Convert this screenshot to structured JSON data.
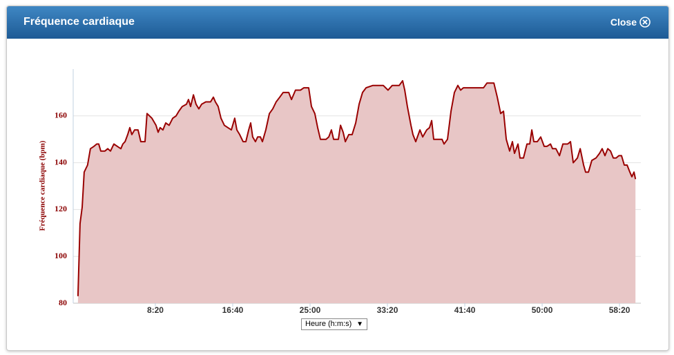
{
  "dialog": {
    "title": "Fréquence cardiaque",
    "close": "Close"
  },
  "chart_data": {
    "type": "area",
    "y_label": "Fréquence cardiaque (bpm)",
    "x_label": "Heure (h:m:s)",
    "x": [
      0,
      13,
      27,
      40,
      62,
      80,
      103,
      121,
      134,
      147,
      174,
      192,
      210,
      232,
      254,
      277,
      290,
      304,
      321,
      335,
      348,
      366,
      388,
      406,
      433,
      446,
      478,
      504,
      518,
      531,
      549,
      567,
      589,
      612,
      634,
      652,
      674,
      701,
      714,
      728,
      746,
      763,
      781,
      799,
      826,
      857,
      875,
      888,
      906,
      924,
      946,
      969,
      991,
      1013,
      1027,
      1045,
      1067,
      1085,
      1103,
      1116,
      1129,
      1147,
      1161,
      1179,
      1192,
      1214,
      1237,
      1259,
      1281,
      1304,
      1326,
      1362,
      1380,
      1406,
      1438,
      1460,
      1491,
      1509,
      1531,
      1549,
      1567,
      1603,
      1621,
      1638,
      1652,
      1683,
      1697,
      1714,
      1728,
      1750,
      1772,
      1795,
      1817,
      1839,
      1862,
      1906,
      1973,
      2004,
      2031,
      2076,
      2098,
      2112,
      2129,
      2152,
      2165,
      2183,
      2210,
      2228,
      2254,
      2272,
      2286,
      2299,
      2353,
      2366,
      2388,
      2411,
      2433,
      2455,
      2473,
      2491,
      2621,
      2643,
      2688,
      2710,
      2732,
      2750,
      2768,
      2790,
      2808,
      2821,
      2844,
      2857,
      2879,
      2902,
      2920,
      2933,
      2946,
      2969,
      2991,
      3013,
      3031,
      3054,
      3067,
      3089,
      3112,
      3134,
      3165,
      3183,
      3201,
      3228,
      3246,
      3268,
      3281,
      3299,
      3321,
      3348,
      3371,
      3388,
      3406,
      3424,
      3442,
      3460,
      3478,
      3496,
      3513,
      3531,
      3549,
      3567,
      3580,
      3594,
      3603
    ],
    "series": [
      {
        "color": "#990000",
        "fill": "#e8c6c6",
        "values": [
          83,
          114,
          121,
          136,
          139,
          146,
          147,
          148,
          148,
          145,
          145,
          146,
          145,
          148,
          147,
          146,
          148,
          149,
          152,
          155,
          152,
          154,
          154,
          149,
          149,
          161,
          159,
          156,
          153,
          155,
          154,
          157,
          156,
          159,
          160,
          162,
          164,
          165,
          167,
          164,
          169,
          165,
          163,
          165,
          166,
          166,
          168,
          166,
          164,
          159,
          156,
          155,
          154,
          159,
          154,
          152,
          149,
          149,
          154,
          157,
          151,
          149,
          151,
          151,
          149,
          154,
          161,
          163,
          166,
          168,
          170,
          170,
          167,
          171,
          171,
          172,
          172,
          164,
          161,
          155,
          150,
          150,
          151,
          154,
          150,
          150,
          156,
          153,
          149,
          152,
          152,
          157,
          165,
          170,
          172,
          173,
          173,
          171,
          173,
          173,
          175,
          171,
          164,
          156,
          152,
          149,
          154,
          151,
          154,
          155,
          158,
          150,
          150,
          148,
          150,
          162,
          170,
          173,
          171,
          172,
          172,
          174,
          174,
          168,
          161,
          162,
          150,
          145,
          149,
          144,
          148,
          142,
          142,
          148,
          148,
          154,
          149,
          149,
          151,
          147,
          147,
          148,
          146,
          146,
          143,
          148,
          148,
          149,
          140,
          142,
          146,
          139,
          136,
          136,
          141,
          142,
          144,
          146,
          143,
          146,
          145,
          142,
          142,
          143,
          143,
          139,
          139,
          136,
          134,
          136,
          133
        ]
      }
    ],
    "xlim": [
      -31,
      3638
    ],
    "xticks": [
      {
        "value": 500,
        "label": "8:20"
      },
      {
        "value": 1000,
        "label": "16:40"
      },
      {
        "value": 1500,
        "label": "25:00"
      },
      {
        "value": 2000,
        "label": "33:20"
      },
      {
        "value": 2500,
        "label": "41:40"
      },
      {
        "value": 3000,
        "label": "50:00"
      },
      {
        "value": 3500,
        "label": "58:20"
      }
    ],
    "ylim": [
      80,
      180
    ],
    "yticks": [
      80,
      100,
      120,
      140,
      160
    ],
    "grid": true
  }
}
